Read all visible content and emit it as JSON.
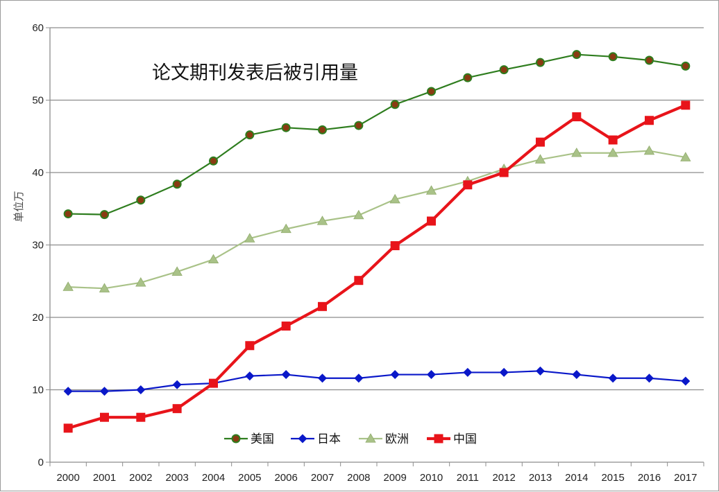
{
  "chart_data": {
    "type": "line",
    "title": "论文期刊发表后被引用量",
    "ylabel": "单位万",
    "xlabel": "",
    "ylim": [
      0,
      60
    ],
    "yticks": [
      0,
      10,
      20,
      30,
      40,
      50,
      60
    ],
    "grid": "horizontal",
    "legend_position": "bottom-center",
    "categories": [
      "2000",
      "2001",
      "2002",
      "2003",
      "2004",
      "2005",
      "2006",
      "2007",
      "2008",
      "2009",
      "2010",
      "2011",
      "2012",
      "2013",
      "2014",
      "2015",
      "2016",
      "2017"
    ],
    "series": [
      {
        "name": "美国",
        "color": "#2e7d1e",
        "marker": "circle",
        "values": [
          34.3,
          34.2,
          36.2,
          38.4,
          41.6,
          45.2,
          46.2,
          45.9,
          46.5,
          49.4,
          51.2,
          53.1,
          54.2,
          55.2,
          56.3,
          56.0,
          55.5,
          54.7
        ]
      },
      {
        "name": "日本",
        "color": "#0a18c9",
        "marker": "diamond",
        "values": [
          9.8,
          9.8,
          10.0,
          10.7,
          10.9,
          11.9,
          12.1,
          11.6,
          11.6,
          12.1,
          12.1,
          12.4,
          12.4,
          12.6,
          12.1,
          11.6,
          11.6,
          11.2
        ]
      },
      {
        "name": "欧洲",
        "color": "#a9c288",
        "marker": "triangle",
        "values": [
          24.2,
          24.0,
          24.8,
          26.3,
          28.0,
          30.9,
          32.2,
          33.3,
          34.1,
          36.3,
          37.5,
          38.8,
          40.5,
          41.8,
          42.7,
          42.7,
          43.0,
          42.1
        ]
      },
      {
        "name": "中国",
        "color": "#e8141a",
        "marker": "square",
        "values": [
          4.7,
          6.2,
          6.2,
          7.4,
          10.9,
          16.1,
          18.8,
          21.5,
          25.1,
          29.9,
          33.3,
          38.3,
          40.0,
          44.2,
          47.7,
          44.5,
          47.2,
          49.3
        ]
      }
    ]
  }
}
